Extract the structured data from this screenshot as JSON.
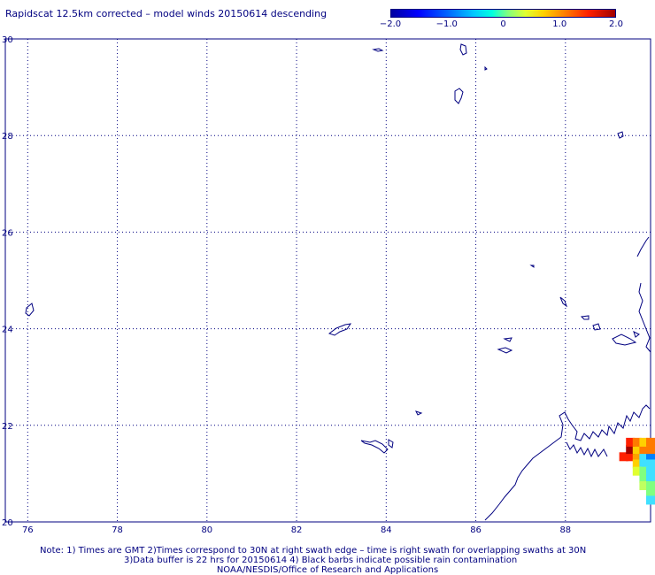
{
  "title": "Rapidscat 12.5km corrected – model winds 20150614 descending",
  "colorbar": {
    "labels": [
      "−2.0",
      "−1.0",
      "0",
      "1.0",
      "2.0"
    ],
    "min": -2.0,
    "max": 2.0
  },
  "axes": {
    "x_ticks": [
      "76",
      "78",
      "80",
      "82",
      "84",
      "86",
      "88"
    ],
    "y_ticks": [
      "30",
      "28",
      "26",
      "24",
      "22",
      "20"
    ],
    "lon_range": [
      75.5,
      89.9
    ],
    "lat_range": [
      20,
      30
    ],
    "grid": "dotted"
  },
  "wind_cells": [
    {
      "lon": 89.3,
      "lat": 21.35,
      "color": "#ff2000"
    },
    {
      "lon": 89.45,
      "lat": 21.35,
      "color": "#ff2000"
    },
    {
      "lon": 89.6,
      "lat": 21.35,
      "color": "#ffa000"
    },
    {
      "lon": 89.75,
      "lat": 21.35,
      "color": "#40e0ff"
    },
    {
      "lon": 89.9,
      "lat": 21.35,
      "color": "#0080ff"
    },
    {
      "lon": 89.45,
      "lat": 21.5,
      "color": "#a00000"
    },
    {
      "lon": 89.6,
      "lat": 21.5,
      "color": "#ffd000"
    },
    {
      "lon": 89.75,
      "lat": 21.5,
      "color": "#ff7a00"
    },
    {
      "lon": 89.9,
      "lat": 21.5,
      "color": "#ff7a00"
    },
    {
      "lon": 89.45,
      "lat": 21.65,
      "color": "#ff2000"
    },
    {
      "lon": 89.6,
      "lat": 21.65,
      "color": "#ff7a00"
    },
    {
      "lon": 89.75,
      "lat": 21.65,
      "color": "#ffd000"
    },
    {
      "lon": 89.9,
      "lat": 21.65,
      "color": "#ff7a00"
    },
    {
      "lon": 89.6,
      "lat": 21.2,
      "color": "#ffd000"
    },
    {
      "lon": 89.75,
      "lat": 21.2,
      "color": "#40e0ff"
    },
    {
      "lon": 89.9,
      "lat": 21.2,
      "color": "#40e0ff"
    },
    {
      "lon": 89.6,
      "lat": 21.05,
      "color": "#e0ff30"
    },
    {
      "lon": 89.75,
      "lat": 21.05,
      "color": "#80ff80"
    },
    {
      "lon": 89.9,
      "lat": 21.05,
      "color": "#40e0ff"
    },
    {
      "lon": 89.75,
      "lat": 20.9,
      "color": "#80ff80"
    },
    {
      "lon": 89.9,
      "lat": 20.9,
      "color": "#40e0ff"
    },
    {
      "lon": 89.75,
      "lat": 20.75,
      "color": "#c0ff60"
    },
    {
      "lon": 89.9,
      "lat": 20.75,
      "color": "#80ff80"
    },
    {
      "lon": 89.9,
      "lat": 20.6,
      "color": "#80ff80"
    },
    {
      "lon": 89.9,
      "lat": 20.45,
      "color": "#40e0ff"
    }
  ],
  "notes": {
    "line1": "Note: 1) Times are GMT 2)Times correspond to 30N at right swath edge – time is right swath for overlapping swaths at 30N",
    "line2": "3)Data buffer is 22 hrs for 20150614 4) Black barbs indicate possible rain contamination",
    "line3": "NOAA/NESDIS/Office of Research and Applications"
  }
}
